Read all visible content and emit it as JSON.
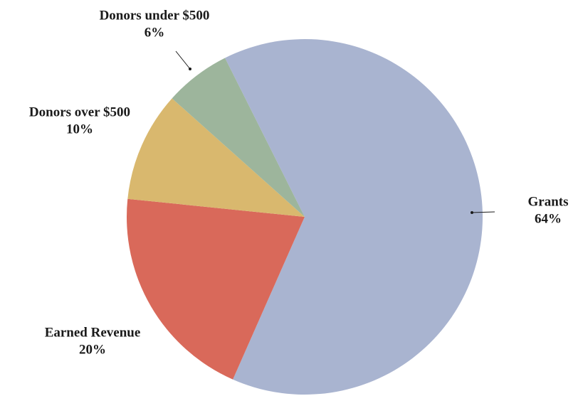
{
  "chart_data": {
    "type": "pie",
    "categories": [
      "Grants",
      "Earned Revenue",
      "Donors over $500",
      "Donors under $500"
    ],
    "values": [
      64,
      20,
      10,
      6
    ],
    "value_labels": [
      "64%",
      "20%",
      "10%",
      "6%"
    ],
    "colors": [
      "#a9b4d0",
      "#d9695a",
      "#d9b86e",
      "#9db59c"
    ]
  }
}
